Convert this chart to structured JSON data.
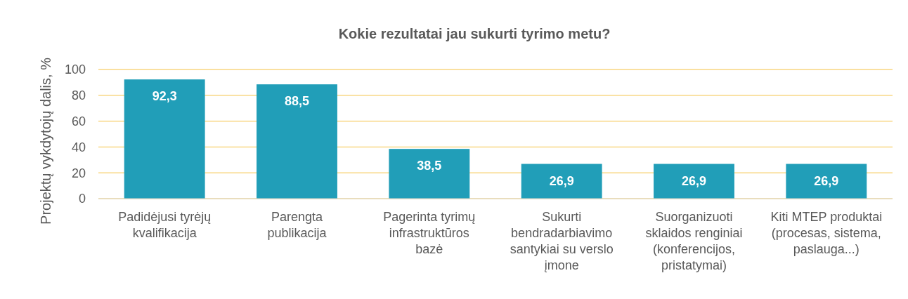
{
  "chart_data": {
    "type": "bar",
    "title": "Kokie rezultatai jau sukurti tyrimo metu?",
    "ylabel": "Projektų vykdytojų dalis, %",
    "categories": [
      "Padidėjusi tyrėjų kvalifikacija",
      "Parengta publikacija",
      "Pagerinta tyrimų infrastruktūros bazė",
      "Sukurti bendradarbiavimo santykiai su verslo įmone",
      "Suorganizuoti sklaidos renginiai (konferencijos, pristatymai)",
      "Kiti MTEP produktai (procesas, sistema, paslauga...)"
    ],
    "values": [
      92.3,
      88.5,
      38.5,
      26.9,
      26.9,
      26.9
    ],
    "color": "#219eb8",
    "value_labels": [
      "92,3",
      "88,5",
      "38,5",
      "26,9",
      "26,9",
      "26,9"
    ],
    "ylim": [
      0,
      100
    ],
    "yticks": [
      0,
      20,
      40,
      60,
      80,
      100
    ],
    "grid": "y"
  }
}
